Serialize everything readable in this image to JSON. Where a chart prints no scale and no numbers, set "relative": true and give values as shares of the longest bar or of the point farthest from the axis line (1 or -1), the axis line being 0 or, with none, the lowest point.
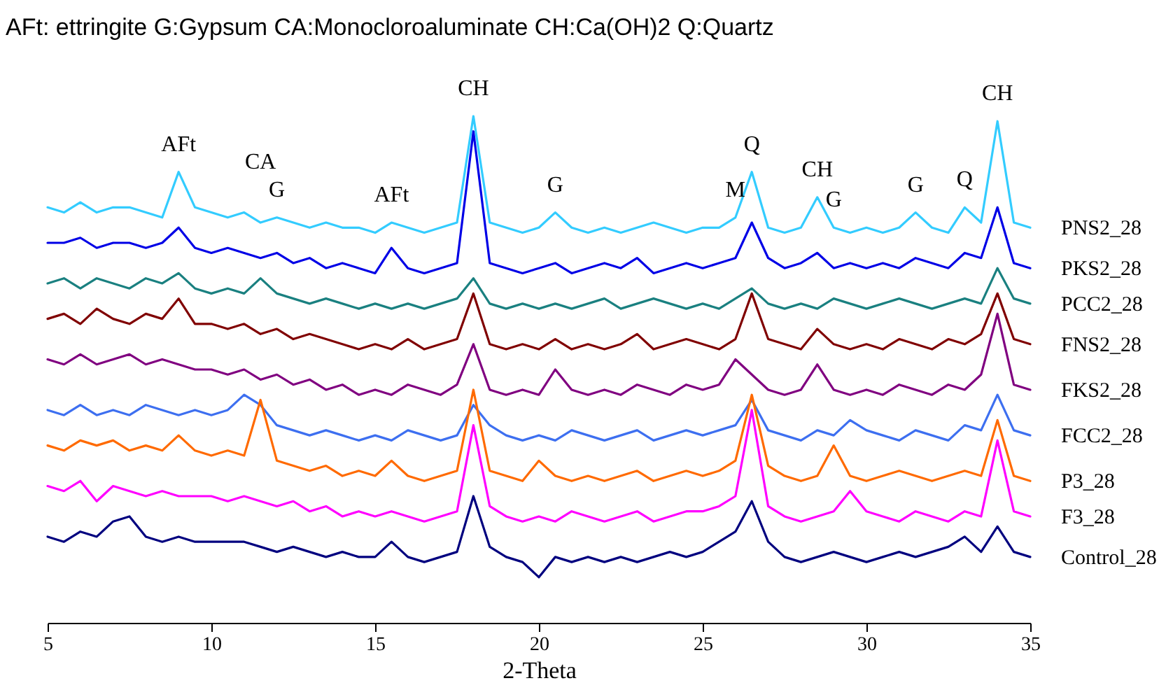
{
  "chart_data": {
    "type": "line",
    "relative": true,
    "title": "AFt: ettringite G:Gypsum  CA:Monocloroaluminate CH:Ca(OH)2 Q:Quartz",
    "xlabel": "2-Theta",
    "xlim": [
      5,
      35
    ],
    "xticks": [
      5,
      10,
      15,
      20,
      25,
      30,
      35
    ],
    "x": [
      5,
      5.5,
      6,
      6.5,
      7,
      7.5,
      8,
      8.5,
      9,
      9.5,
      10,
      10.5,
      11,
      11.5,
      12,
      12.5,
      13,
      13.5,
      14,
      14.5,
      15,
      15.5,
      16,
      16.5,
      17,
      17.5,
      18,
      18.5,
      19,
      19.5,
      20,
      20.5,
      21,
      21.5,
      22,
      22.5,
      23,
      23.5,
      24,
      24.5,
      25,
      25.5,
      26,
      26.5,
      27,
      27.5,
      28,
      28.5,
      29,
      29.5,
      30,
      30.5,
      31,
      31.5,
      32,
      32.5,
      33,
      33.5,
      34,
      34.5,
      35
    ],
    "series": [
      {
        "name": "PNS2_28",
        "color": "#33ccff",
        "values": [
          0.82,
          0.81,
          0.83,
          0.81,
          0.82,
          0.82,
          0.81,
          0.8,
          0.89,
          0.82,
          0.81,
          0.8,
          0.81,
          0.79,
          0.8,
          0.79,
          0.78,
          0.79,
          0.78,
          0.78,
          0.77,
          0.79,
          0.78,
          0.77,
          0.78,
          0.79,
          1.0,
          0.79,
          0.78,
          0.77,
          0.78,
          0.81,
          0.78,
          0.77,
          0.78,
          0.77,
          0.78,
          0.79,
          0.78,
          0.77,
          0.78,
          0.78,
          0.8,
          0.89,
          0.78,
          0.77,
          0.78,
          0.84,
          0.78,
          0.77,
          0.78,
          0.77,
          0.78,
          0.81,
          0.78,
          0.77,
          0.82,
          0.79,
          0.99,
          0.79,
          0.78
        ]
      },
      {
        "name": "PKS2_28",
        "color": "#0000e6",
        "values": [
          0.75,
          0.75,
          0.76,
          0.74,
          0.75,
          0.75,
          0.74,
          0.75,
          0.78,
          0.74,
          0.73,
          0.74,
          0.73,
          0.72,
          0.73,
          0.71,
          0.72,
          0.7,
          0.71,
          0.7,
          0.69,
          0.74,
          0.7,
          0.69,
          0.7,
          0.71,
          0.97,
          0.71,
          0.7,
          0.69,
          0.7,
          0.71,
          0.69,
          0.7,
          0.71,
          0.7,
          0.72,
          0.69,
          0.7,
          0.71,
          0.7,
          0.71,
          0.72,
          0.79,
          0.72,
          0.7,
          0.71,
          0.73,
          0.7,
          0.71,
          0.7,
          0.71,
          0.7,
          0.72,
          0.71,
          0.7,
          0.73,
          0.72,
          0.82,
          0.71,
          0.7
        ]
      },
      {
        "name": "PCC2_28",
        "color": "#1a8080",
        "values": [
          0.67,
          0.68,
          0.66,
          0.68,
          0.67,
          0.66,
          0.68,
          0.67,
          0.69,
          0.66,
          0.65,
          0.66,
          0.65,
          0.68,
          0.65,
          0.64,
          0.63,
          0.64,
          0.63,
          0.62,
          0.63,
          0.62,
          0.63,
          0.62,
          0.63,
          0.64,
          0.68,
          0.63,
          0.62,
          0.63,
          0.62,
          0.63,
          0.62,
          0.63,
          0.64,
          0.62,
          0.63,
          0.64,
          0.63,
          0.62,
          0.63,
          0.62,
          0.64,
          0.66,
          0.63,
          0.62,
          0.63,
          0.62,
          0.64,
          0.63,
          0.62,
          0.63,
          0.64,
          0.63,
          0.62,
          0.63,
          0.64,
          0.63,
          0.7,
          0.64,
          0.63
        ]
      },
      {
        "name": "FNS2_28",
        "color": "#800000",
        "values": [
          0.6,
          0.61,
          0.59,
          0.62,
          0.6,
          0.59,
          0.61,
          0.6,
          0.64,
          0.59,
          0.59,
          0.58,
          0.59,
          0.57,
          0.58,
          0.56,
          0.57,
          0.56,
          0.55,
          0.54,
          0.55,
          0.54,
          0.56,
          0.54,
          0.55,
          0.56,
          0.65,
          0.55,
          0.54,
          0.55,
          0.54,
          0.56,
          0.54,
          0.55,
          0.54,
          0.55,
          0.57,
          0.54,
          0.55,
          0.56,
          0.55,
          0.54,
          0.56,
          0.65,
          0.56,
          0.55,
          0.54,
          0.58,
          0.55,
          0.54,
          0.55,
          0.54,
          0.56,
          0.55,
          0.54,
          0.56,
          0.55,
          0.57,
          0.65,
          0.56,
          0.55
        ]
      },
      {
        "name": "FKS2_28",
        "color": "#800080",
        "values": [
          0.52,
          0.51,
          0.53,
          0.51,
          0.52,
          0.53,
          0.51,
          0.52,
          0.51,
          0.5,
          0.5,
          0.49,
          0.5,
          0.48,
          0.49,
          0.47,
          0.48,
          0.46,
          0.47,
          0.45,
          0.46,
          0.45,
          0.47,
          0.46,
          0.45,
          0.47,
          0.55,
          0.46,
          0.45,
          0.46,
          0.45,
          0.5,
          0.46,
          0.45,
          0.46,
          0.45,
          0.47,
          0.46,
          0.45,
          0.47,
          0.46,
          0.47,
          0.52,
          0.49,
          0.46,
          0.45,
          0.46,
          0.51,
          0.46,
          0.45,
          0.46,
          0.45,
          0.47,
          0.46,
          0.45,
          0.47,
          0.46,
          0.49,
          0.61,
          0.47,
          0.46
        ]
      },
      {
        "name": "FCC2_28",
        "color": "#3d6ff0",
        "values": [
          0.42,
          0.41,
          0.43,
          0.41,
          0.42,
          0.41,
          0.43,
          0.42,
          0.41,
          0.42,
          0.41,
          0.42,
          0.45,
          0.43,
          0.39,
          0.38,
          0.37,
          0.38,
          0.37,
          0.36,
          0.37,
          0.36,
          0.38,
          0.37,
          0.36,
          0.37,
          0.43,
          0.39,
          0.37,
          0.36,
          0.37,
          0.36,
          0.38,
          0.37,
          0.36,
          0.37,
          0.38,
          0.36,
          0.37,
          0.38,
          0.37,
          0.38,
          0.39,
          0.44,
          0.38,
          0.37,
          0.36,
          0.38,
          0.37,
          0.4,
          0.38,
          0.37,
          0.36,
          0.38,
          0.37,
          0.36,
          0.39,
          0.38,
          0.45,
          0.38,
          0.37
        ]
      },
      {
        "name": "P3_28",
        "color": "#ff6a00",
        "values": [
          0.35,
          0.34,
          0.36,
          0.35,
          0.36,
          0.34,
          0.35,
          0.34,
          0.37,
          0.34,
          0.33,
          0.34,
          0.33,
          0.44,
          0.32,
          0.31,
          0.3,
          0.31,
          0.29,
          0.3,
          0.29,
          0.32,
          0.29,
          0.28,
          0.29,
          0.3,
          0.46,
          0.3,
          0.29,
          0.28,
          0.32,
          0.29,
          0.28,
          0.29,
          0.28,
          0.29,
          0.3,
          0.28,
          0.29,
          0.3,
          0.29,
          0.3,
          0.32,
          0.45,
          0.31,
          0.29,
          0.28,
          0.29,
          0.35,
          0.29,
          0.28,
          0.29,
          0.3,
          0.29,
          0.28,
          0.29,
          0.3,
          0.29,
          0.4,
          0.29,
          0.28
        ]
      },
      {
        "name": "F3_28",
        "color": "#ff00ff",
        "values": [
          0.27,
          0.26,
          0.28,
          0.24,
          0.27,
          0.26,
          0.25,
          0.26,
          0.25,
          0.25,
          0.25,
          0.24,
          0.25,
          0.24,
          0.23,
          0.24,
          0.22,
          0.23,
          0.21,
          0.22,
          0.21,
          0.22,
          0.21,
          0.2,
          0.21,
          0.22,
          0.39,
          0.23,
          0.21,
          0.2,
          0.21,
          0.2,
          0.22,
          0.21,
          0.2,
          0.21,
          0.22,
          0.2,
          0.21,
          0.22,
          0.22,
          0.23,
          0.25,
          0.42,
          0.23,
          0.21,
          0.2,
          0.21,
          0.22,
          0.26,
          0.22,
          0.21,
          0.2,
          0.22,
          0.21,
          0.2,
          0.22,
          0.21,
          0.36,
          0.22,
          0.21
        ]
      },
      {
        "name": "Control_28",
        "color": "#00007f",
        "values": [
          0.17,
          0.16,
          0.18,
          0.17,
          0.2,
          0.21,
          0.17,
          0.16,
          0.17,
          0.16,
          0.16,
          0.16,
          0.16,
          0.15,
          0.14,
          0.15,
          0.14,
          0.13,
          0.14,
          0.13,
          0.13,
          0.16,
          0.13,
          0.12,
          0.13,
          0.14,
          0.25,
          0.15,
          0.13,
          0.12,
          0.09,
          0.13,
          0.12,
          0.13,
          0.12,
          0.13,
          0.12,
          0.13,
          0.14,
          0.13,
          0.14,
          0.16,
          0.18,
          0.24,
          0.16,
          0.13,
          0.12,
          0.13,
          0.14,
          0.13,
          0.12,
          0.13,
          0.14,
          0.13,
          0.14,
          0.15,
          0.17,
          0.14,
          0.19,
          0.14,
          0.13
        ]
      }
    ],
    "annotations": [
      {
        "text": "AFt",
        "x": 9,
        "y": 0.89
      },
      {
        "text": "CA",
        "x": 11.5,
        "y": 0.79
      },
      {
        "text": "G",
        "x": 12,
        "y": 0.8
      },
      {
        "text": "AFt",
        "x": 15.5,
        "y": 0.79
      },
      {
        "text": "CH",
        "x": 18,
        "y": 1.0
      },
      {
        "text": "G",
        "x": 20.5,
        "y": 0.81
      },
      {
        "text": "M",
        "x": 26,
        "y": 0.8
      },
      {
        "text": "Q",
        "x": 26.5,
        "y": 0.89
      },
      {
        "text": "CH",
        "x": 28.5,
        "y": 0.84
      },
      {
        "text": "G",
        "x": 29,
        "y": 0.78
      },
      {
        "text": "G",
        "x": 31.5,
        "y": 0.81
      },
      {
        "text": "Q",
        "x": 33,
        "y": 0.82
      },
      {
        "text": "CH",
        "x": 34,
        "y": 0.99
      }
    ]
  }
}
